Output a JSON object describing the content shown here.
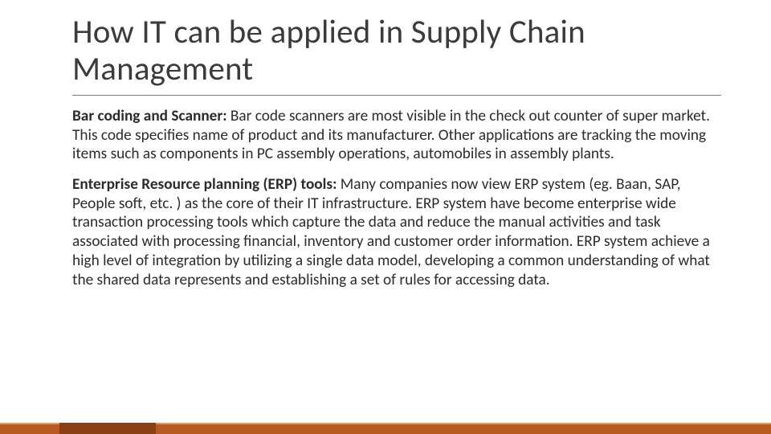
{
  "title": "How IT can be applied in Supply Chain Management",
  "paragraphs": [
    {
      "lead": "Bar coding and Scanner:",
      "text": " Bar code scanners are most visible in the check out counter of super market.  This code specifies name of product and its manufacturer. Other applications are tracking the moving items such as components in PC assembly operations, automobiles in assembly plants."
    },
    {
      "lead": "Enterprise Resource planning (ERP) tools:",
      "text": " Many companies now view ERP system (eg. Baan, SAP, People soft, etc. ) as the core of their IT infrastructure. ERP system have become enterprise wide transaction processing tools which capture the data and reduce the manual activities and task associated with processing financial, inventory and customer order information. ERP system achieve a high level of integration by utilizing a single data model, developing a common understanding of what the shared data represents and establishing a set of rules for accessing data."
    }
  ],
  "colors": {
    "title": "#3b3b3b",
    "body": "#2b2b2b",
    "rule": "#7a7a7a",
    "footer_main": "#b75b22",
    "footer_top": "#e29a55",
    "footer_block": "#8a3f16",
    "background": "#ffffff"
  },
  "typography": {
    "title_fontsize": 41,
    "body_fontsize": 19.3,
    "line_height": 1.23
  }
}
